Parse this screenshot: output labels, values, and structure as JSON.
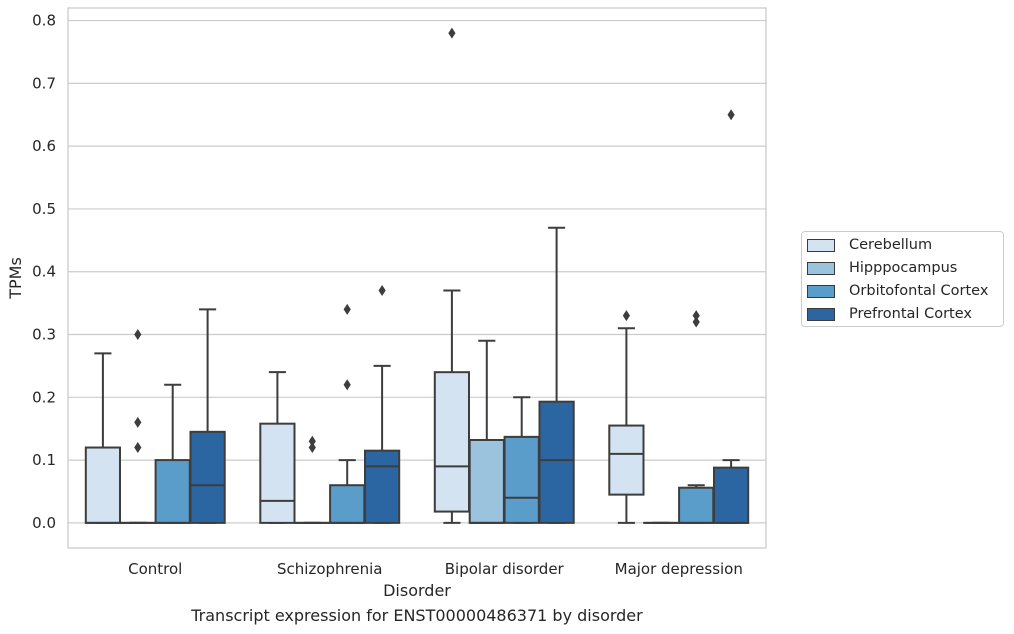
{
  "chart_data": {
    "type": "box",
    "title": "Transcript expression for ENST00000486371 by disorder",
    "xlabel": "Disorder",
    "ylabel": "TPMs",
    "ylim": [
      -0.04,
      0.82
    ],
    "yticks": [
      "0.0",
      "0.1",
      "0.2",
      "0.3",
      "0.4",
      "0.5",
      "0.6",
      "0.7",
      "0.8"
    ],
    "ytick_values": [
      0.0,
      0.1,
      0.2,
      0.3,
      0.4,
      0.5,
      0.6,
      0.7,
      0.8
    ],
    "grid": true,
    "legend_position": "right",
    "categories": [
      "Control",
      "Schizophrenia",
      "Bipolar disorder",
      "Major depression"
    ],
    "series": [
      {
        "name": "Cerebellum",
        "color": "#d4e3f1",
        "boxes": [
          {
            "category": "Control",
            "whislo": 0.0,
            "q1": 0.0,
            "med": 0.0,
            "q3": 0.12,
            "whishi": 0.27,
            "fliers": []
          },
          {
            "category": "Schizophrenia",
            "whislo": 0.0,
            "q1": 0.0,
            "med": 0.035,
            "q3": 0.158,
            "whishi": 0.24,
            "fliers": []
          },
          {
            "category": "Bipolar disorder",
            "whislo": 0.0,
            "q1": 0.018,
            "med": 0.09,
            "q3": 0.24,
            "whishi": 0.37,
            "fliers": [
              0.78
            ]
          },
          {
            "category": "Major depression",
            "whislo": 0.0,
            "q1": 0.045,
            "med": 0.11,
            "q3": 0.155,
            "whishi": 0.31,
            "fliers": [
              0.33
            ]
          }
        ]
      },
      {
        "name": "Hipppocampus",
        "color": "#9cc3dd",
        "boxes": [
          {
            "category": "Control",
            "whislo": 0.0,
            "q1": 0.0,
            "med": 0.0,
            "q3": 0.0,
            "whishi": 0.0,
            "fliers": [
              0.3,
              0.16,
              0.12
            ]
          },
          {
            "category": "Schizophrenia",
            "whislo": 0.0,
            "q1": 0.0,
            "med": 0.0,
            "q3": 0.0,
            "whishi": 0.0,
            "fliers": [
              0.13,
              0.12
            ]
          },
          {
            "category": "Bipolar disorder",
            "whislo": 0.0,
            "q1": 0.0,
            "med": 0.0,
            "q3": 0.132,
            "whishi": 0.29,
            "fliers": []
          },
          {
            "category": "Major depression",
            "whislo": 0.0,
            "q1": 0.0,
            "med": 0.0,
            "q3": 0.0,
            "whishi": 0.0,
            "fliers": []
          }
        ]
      },
      {
        "name": "Orbitofontal Cortex",
        "color": "#5a9dcb",
        "boxes": [
          {
            "category": "Control",
            "whislo": 0.0,
            "q1": 0.0,
            "med": 0.0,
            "q3": 0.1,
            "whishi": 0.22,
            "fliers": []
          },
          {
            "category": "Schizophrenia",
            "whislo": 0.0,
            "q1": 0.0,
            "med": 0.0,
            "q3": 0.06,
            "whishi": 0.1,
            "fliers": [
              0.34,
              0.22
            ]
          },
          {
            "category": "Bipolar disorder",
            "whislo": 0.0,
            "q1": 0.0,
            "med": 0.04,
            "q3": 0.137,
            "whishi": 0.2,
            "fliers": []
          },
          {
            "category": "Major depression",
            "whislo": 0.0,
            "q1": 0.0,
            "med": 0.0,
            "q3": 0.056,
            "whishi": 0.06,
            "fliers": [
              0.33,
              0.32
            ]
          }
        ]
      },
      {
        "name": "Prefrontal Cortex",
        "color": "#2b66a3",
        "boxes": [
          {
            "category": "Control",
            "whislo": 0.0,
            "q1": 0.0,
            "med": 0.06,
            "q3": 0.145,
            "whishi": 0.34,
            "fliers": []
          },
          {
            "category": "Schizophrenia",
            "whislo": 0.0,
            "q1": 0.0,
            "med": 0.09,
            "q3": 0.115,
            "whishi": 0.25,
            "fliers": [
              0.37
            ]
          },
          {
            "category": "Bipolar disorder",
            "whislo": 0.0,
            "q1": 0.0,
            "med": 0.1,
            "q3": 0.193,
            "whishi": 0.47,
            "fliers": []
          },
          {
            "category": "Major depression",
            "whislo": 0.0,
            "q1": 0.0,
            "med": 0.0,
            "q3": 0.088,
            "whishi": 0.1,
            "fliers": [
              0.65
            ]
          }
        ]
      }
    ]
  }
}
